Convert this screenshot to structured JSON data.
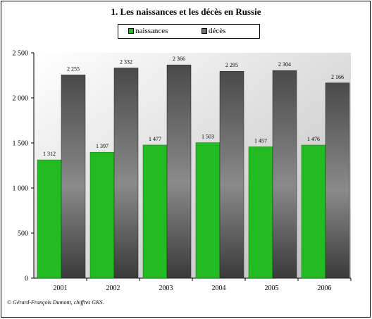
{
  "title": "1. Les naissances et les décès en Russie",
  "footer": "© Gérard-François Dumont, chiffres GKS.",
  "colors": {
    "naissances": "#22bb22",
    "deces": "#707070"
  },
  "chart_data": {
    "type": "bar",
    "categories": [
      "2001",
      "2002",
      "2003",
      "2004",
      "2005",
      "2006"
    ],
    "series": [
      {
        "name": "naissances",
        "values": [
          1312,
          1397,
          1477,
          1503,
          1457,
          1476
        ],
        "labels": [
          "1 312",
          "1 397",
          "1 477",
          "1 503",
          "1 457",
          "1 476"
        ]
      },
      {
        "name": "décès",
        "values": [
          2255,
          2332,
          2366,
          2295,
          2304,
          2166
        ],
        "labels": [
          "2 255",
          "2 332",
          "2 366",
          "2 295",
          "2 304",
          "2 166"
        ]
      }
    ],
    "ylim": [
      0,
      2500
    ],
    "yticks": [
      0,
      500,
      1000,
      1500,
      2000,
      2500
    ],
    "ytick_labels": [
      "0",
      "500",
      "1 000",
      "1 500",
      "2 000",
      "2 500"
    ],
    "legend": "top-center",
    "grid": false
  }
}
